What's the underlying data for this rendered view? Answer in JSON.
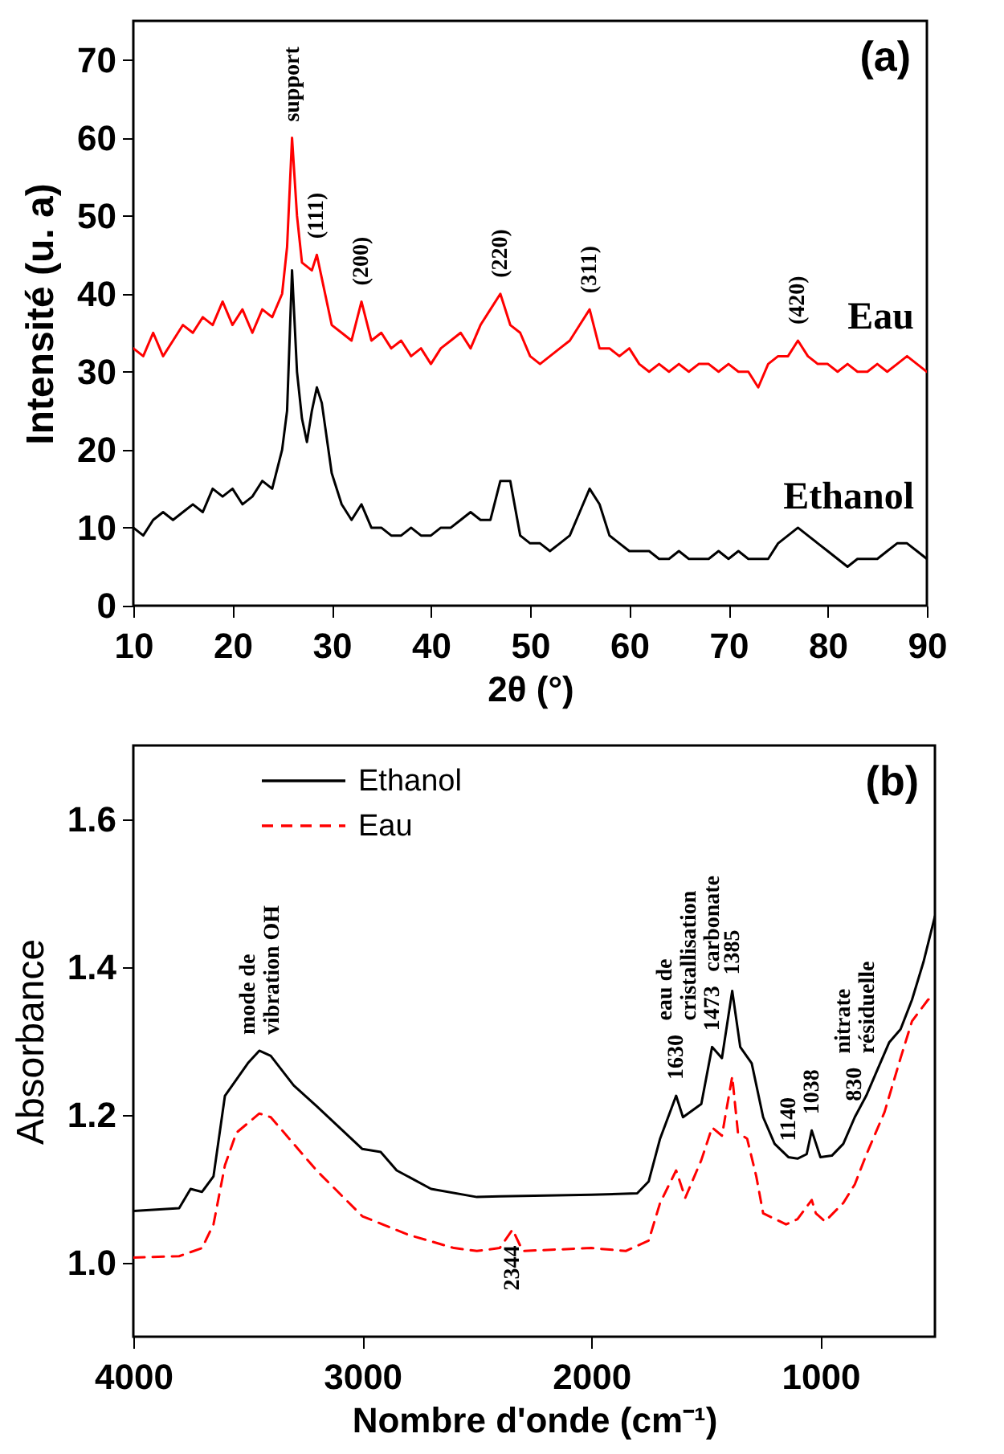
{
  "chart_data": [
    {
      "type": "line",
      "xlabel": "2θ (°)",
      "ylabel": "Intensité (u. a)",
      "xlim": [
        10,
        90
      ],
      "ylim": [
        0,
        75
      ],
      "xticks": [
        10,
        20,
        30,
        40,
        50,
        60,
        70,
        80,
        90
      ],
      "yticks": [
        0,
        10,
        20,
        30,
        40,
        50,
        60,
        70
      ],
      "series": [
        {
          "name": "Eau",
          "color": "#ff0000",
          "line_style": "solid",
          "x": [
            10,
            11,
            12,
            13,
            14,
            15,
            16,
            17,
            18,
            19,
            20,
            21,
            22,
            23,
            24,
            25,
            25.5,
            26,
            26.5,
            27,
            28,
            28.5,
            29,
            30,
            31,
            32,
            33,
            34,
            35,
            36,
            37,
            38,
            39,
            40,
            41,
            42,
            43,
            44,
            45,
            46,
            47,
            48,
            49,
            50,
            51,
            52,
            53,
            54,
            55,
            56,
            57,
            58,
            59,
            60,
            61,
            62,
            63,
            64,
            65,
            66,
            67,
            68,
            69,
            70,
            71,
            72,
            73,
            74,
            75,
            76,
            77,
            78,
            79,
            80,
            81,
            82,
            83,
            84,
            85,
            86,
            87,
            88,
            89,
            90
          ],
          "values": [
            33,
            32,
            35,
            32,
            34,
            36,
            35,
            37,
            36,
            39,
            36,
            38,
            35,
            38,
            37,
            40,
            46,
            60,
            50,
            44,
            43,
            45,
            42,
            36,
            35,
            34,
            39,
            34,
            35,
            33,
            34,
            32,
            33,
            31,
            33,
            34,
            35,
            33,
            36,
            38,
            40,
            36,
            35,
            32,
            31,
            32,
            33,
            34,
            36,
            38,
            33,
            33,
            32,
            33,
            31,
            30,
            31,
            30,
            31,
            30,
            31,
            31,
            30,
            31,
            30,
            30,
            28,
            31,
            32,
            32,
            34,
            32,
            31,
            31,
            30,
            31,
            30,
            30,
            31,
            30,
            31,
            32,
            31,
            30
          ]
        },
        {
          "name": "Ethanol",
          "color": "#000000",
          "line_style": "solid",
          "x": [
            10,
            11,
            12,
            13,
            14,
            15,
            16,
            17,
            18,
            19,
            20,
            21,
            22,
            23,
            24,
            25,
            25.5,
            26,
            26.5,
            27,
            27.5,
            28,
            28.5,
            29,
            30,
            31,
            32,
            33,
            34,
            35,
            36,
            37,
            38,
            39,
            40,
            41,
            42,
            43,
            44,
            45,
            46,
            47,
            48,
            49,
            50,
            51,
            52,
            53,
            54,
            55,
            56,
            57,
            58,
            59,
            60,
            61,
            62,
            63,
            64,
            65,
            66,
            67,
            68,
            69,
            70,
            71,
            72,
            73,
            74,
            75,
            76,
            77,
            78,
            79,
            80,
            81,
            82,
            83,
            84,
            85,
            86,
            87,
            88,
            89,
            90
          ],
          "values": [
            10,
            9,
            11,
            12,
            11,
            12,
            13,
            12,
            15,
            14,
            15,
            13,
            14,
            16,
            15,
            20,
            25,
            43,
            30,
            24,
            21,
            25,
            28,
            26,
            17,
            13,
            11,
            13,
            10,
            10,
            9,
            9,
            10,
            9,
            9,
            10,
            10,
            11,
            12,
            11,
            11,
            16,
            16,
            9,
            8,
            8,
            7,
            8,
            9,
            12,
            15,
            13,
            9,
            8,
            7,
            7,
            7,
            6,
            6,
            7,
            6,
            6,
            6,
            7,
            6,
            7,
            6,
            6,
            6,
            8,
            9,
            10,
            9,
            8,
            7,
            6,
            5,
            6,
            6,
            6,
            7,
            8,
            8,
            7,
            6
          ]
        }
      ],
      "annotations": [
        "(a)",
        {
          "text": "support",
          "x": 26,
          "y": 60
        },
        {
          "text": "(111)",
          "x": 28.5,
          "y": 45
        },
        {
          "text": "(200)",
          "x": 33,
          "y": 39
        },
        {
          "text": "(220)",
          "x": 47,
          "y": 40
        },
        {
          "text": "(311)",
          "x": 56,
          "y": 38
        },
        {
          "text": "(420)",
          "x": 77,
          "y": 34
        }
      ]
    },
    {
      "type": "line",
      "xlabel": "Nombre d'onde (cm⁻¹)",
      "ylabel": "Absorbance",
      "xlim": [
        4000,
        500
      ],
      "ylim": [
        0.9,
        1.7
      ],
      "xticks": [
        4000,
        3000,
        2000,
        1000
      ],
      "yticks": [
        {
          "value": 1.0,
          "label": "1.0"
        },
        {
          "value": 1.2,
          "label": "1.2"
        },
        {
          "value": 1.4,
          "label": "1.4"
        },
        {
          "value": 1.6,
          "label": "1.6"
        }
      ],
      "legend": "top left",
      "series": [
        {
          "name": "Ethanol",
          "color": "#000000",
          "line_style": "solid",
          "x": [
            4000,
            3800,
            3750,
            3700,
            3650,
            3600,
            3500,
            3450,
            3400,
            3300,
            3200,
            3000,
            2920,
            2850,
            2700,
            2500,
            2400,
            2000,
            1800,
            1750,
            1700,
            1630,
            1600,
            1520,
            1473,
            1430,
            1385,
            1350,
            1300,
            1250,
            1200,
            1140,
            1100,
            1060,
            1038,
            1000,
            950,
            900,
            850,
            800,
            750,
            700,
            650,
            600,
            550,
            500
          ],
          "values": [
            1.07,
            1.074,
            1.1,
            1.096,
            1.117,
            1.226,
            1.27,
            1.287,
            1.28,
            1.24,
            1.212,
            1.154,
            1.15,
            1.125,
            1.1,
            1.089,
            1.09,
            1.092,
            1.094,
            1.11,
            1.168,
            1.226,
            1.197,
            1.215,
            1.292,
            1.277,
            1.368,
            1.292,
            1.27,
            1.197,
            1.161,
            1.143,
            1.141,
            1.147,
            1.179,
            1.143,
            1.145,
            1.161,
            1.197,
            1.226,
            1.262,
            1.298,
            1.316,
            1.356,
            1.407,
            1.469
          ]
        },
        {
          "name": "Eau",
          "color": "#ff0000",
          "line_style": "dashed",
          "x": [
            4000,
            3800,
            3700,
            3650,
            3600,
            3550,
            3450,
            3400,
            3300,
            3200,
            3000,
            2800,
            2600,
            2500,
            2400,
            2344,
            2300,
            2000,
            1850,
            1750,
            1700,
            1630,
            1590,
            1520,
            1473,
            1430,
            1385,
            1360,
            1320,
            1280,
            1250,
            1150,
            1100,
            1038,
            1020,
            980,
            900,
            850,
            800,
            720,
            650,
            600,
            530,
            500
          ],
          "values": [
            1.007,
            1.009,
            1.02,
            1.052,
            1.132,
            1.176,
            1.202,
            1.197,
            1.161,
            1.125,
            1.063,
            1.038,
            1.02,
            1.016,
            1.02,
            1.045,
            1.016,
            1.02,
            1.016,
            1.03,
            1.081,
            1.125,
            1.088,
            1.139,
            1.183,
            1.172,
            1.252,
            1.176,
            1.168,
            1.117,
            1.067,
            1.052,
            1.059,
            1.085,
            1.067,
            1.056,
            1.081,
            1.106,
            1.146,
            1.204,
            1.277,
            1.327,
            1.356,
            1.36
          ]
        }
      ],
      "annotations": [
        "(b)",
        {
          "text": "mode de vibration OH",
          "x": 3450,
          "y": 1.287
        },
        {
          "text": "1630",
          "x": 1630,
          "y": 1.226
        },
        "eau de cristallisation",
        {
          "text": "1473",
          "x": 1473,
          "y": 1.292
        },
        "carbonate",
        {
          "text": "1385",
          "x": 1385,
          "y": 1.368
        },
        {
          "text": "1140",
          "x": 1140,
          "y": 1.143
        },
        {
          "text": "1038",
          "x": 1038,
          "y": 1.179
        },
        {
          "text": "830",
          "x": 850,
          "y": 1.197
        },
        "nitrate résiduelle",
        {
          "text": "2344",
          "x": 2344,
          "y": 1.045
        }
      ]
    }
  ]
}
